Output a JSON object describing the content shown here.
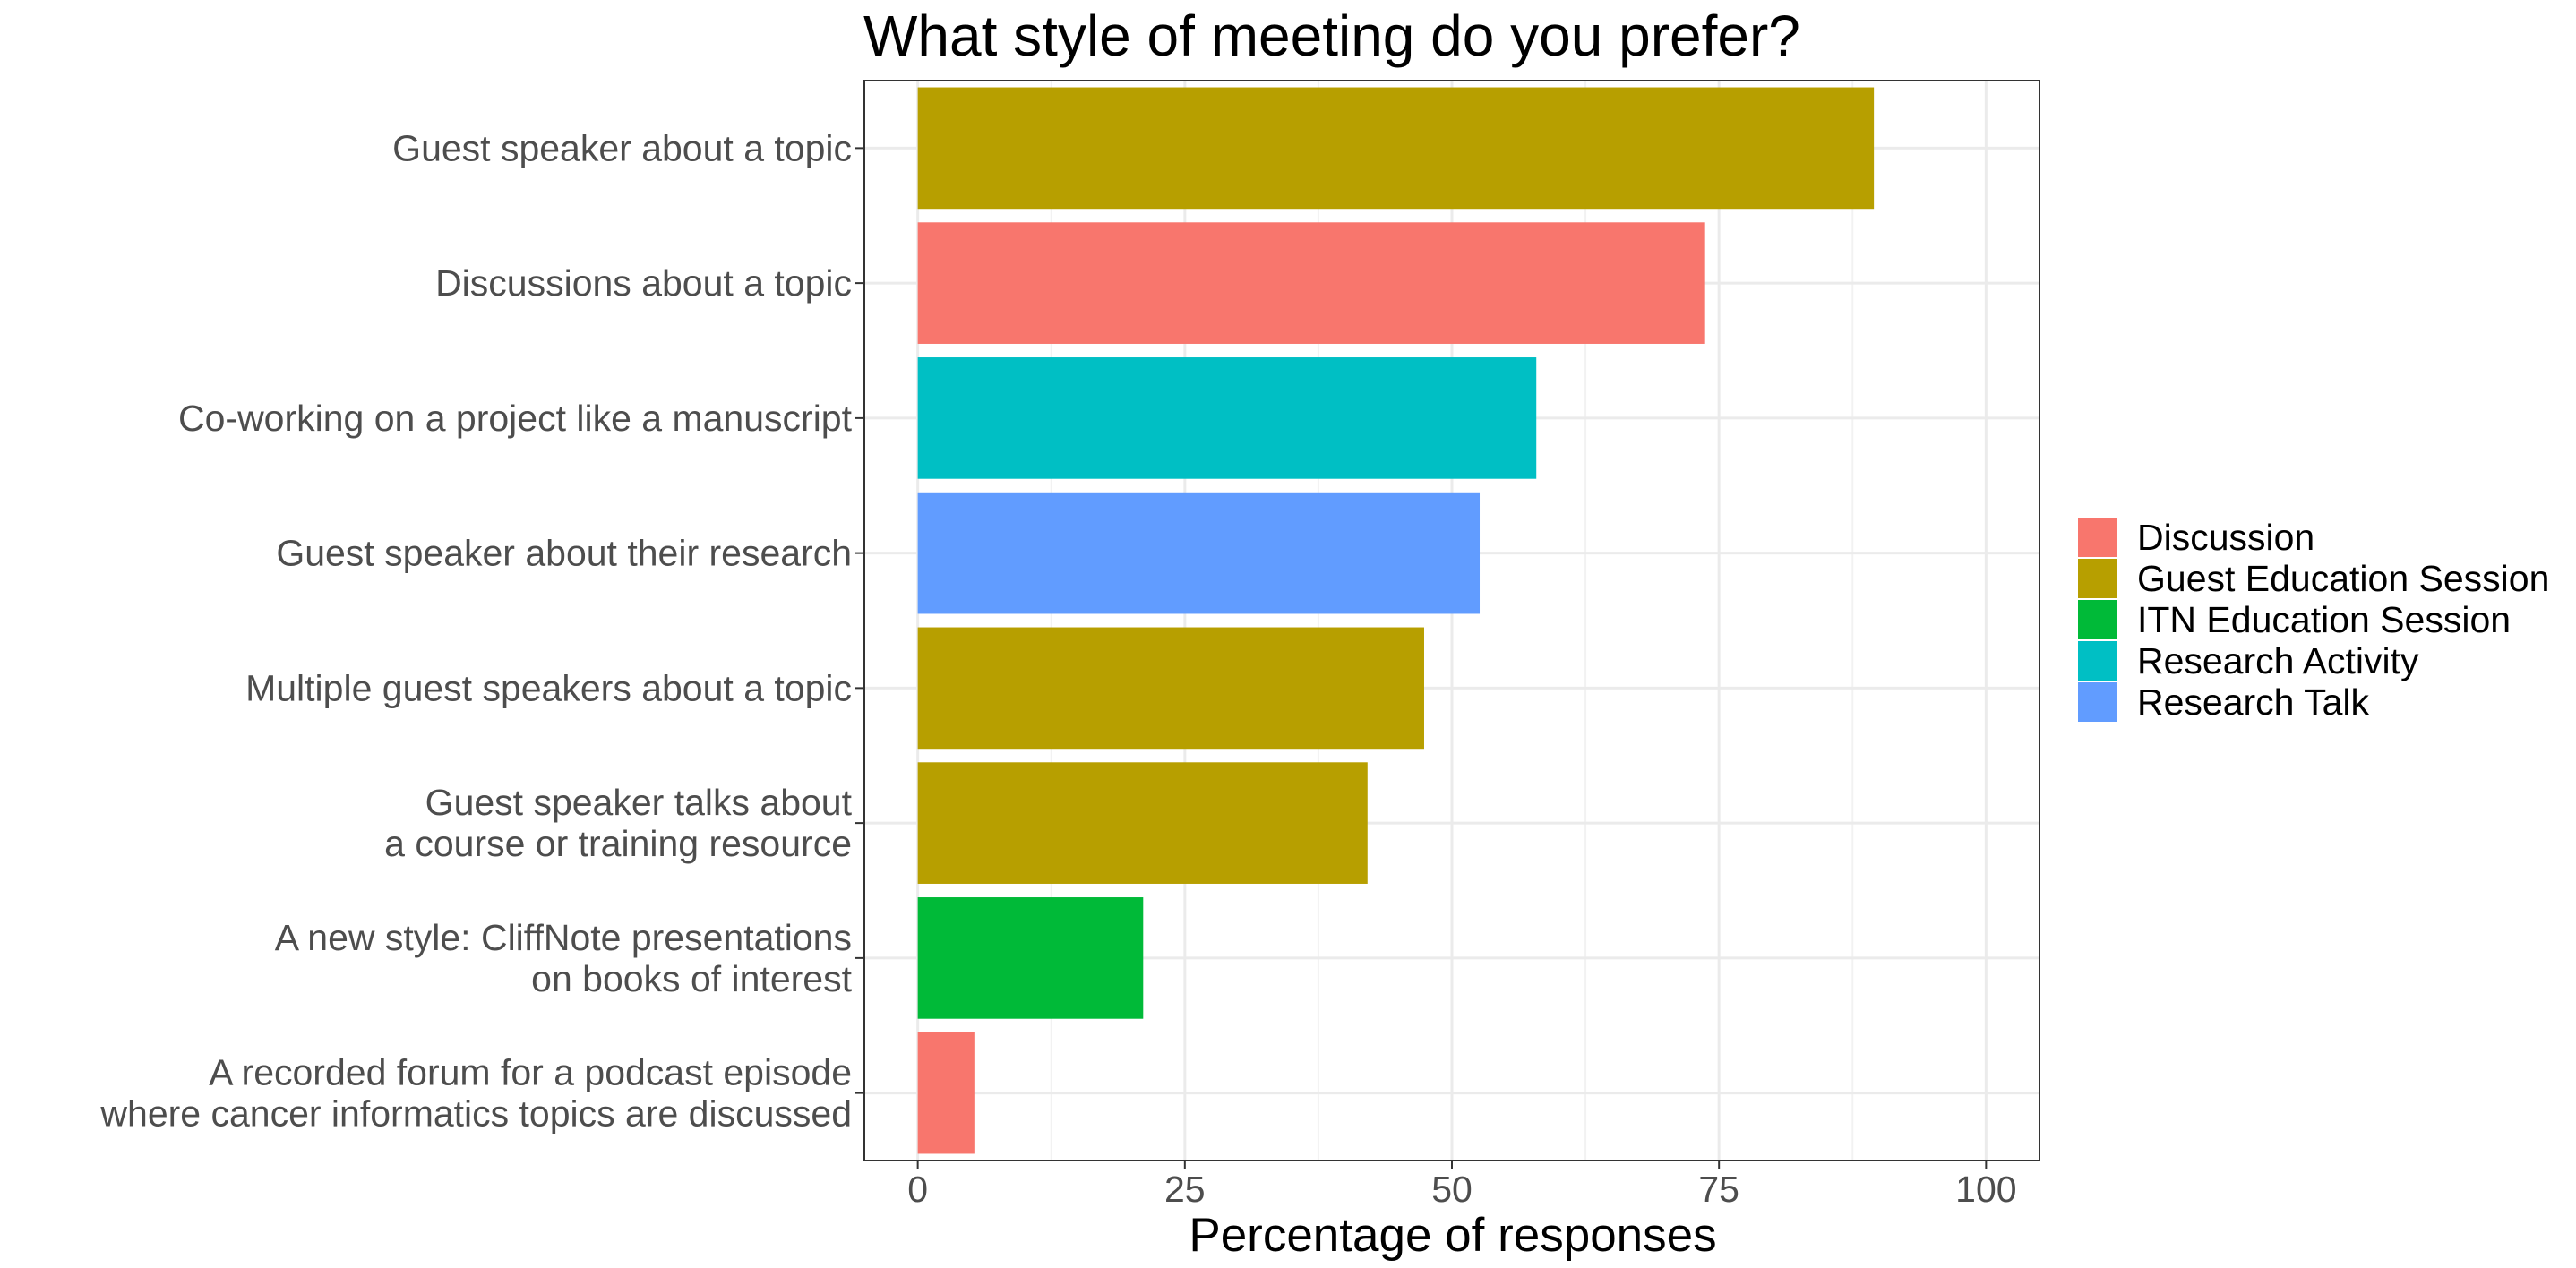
{
  "chart_data": {
    "type": "bar",
    "orientation": "horizontal",
    "title": "What style of meeting do you prefer?",
    "xlabel": "Percentage of responses",
    "ylabel": "",
    "xlim": [
      -5,
      105
    ],
    "xticks": [
      0,
      25,
      50,
      75,
      100
    ],
    "grid": true,
    "legend_position": "right",
    "legend": [
      {
        "name": "Discussion",
        "color": "#F8766D"
      },
      {
        "name": "Guest Education Session",
        "color": "#B79F00"
      },
      {
        "name": "ITN Education Session",
        "color": "#00BA38"
      },
      {
        "name": "Research Activity",
        "color": "#00BFC4"
      },
      {
        "name": "Research Talk",
        "color": "#619CFF"
      }
    ],
    "bars": [
      {
        "label": [
          "Guest speaker about a topic"
        ],
        "value": 89.5,
        "group": "Guest Education Session"
      },
      {
        "label": [
          "Discussions about a topic"
        ],
        "value": 73.7,
        "group": "Discussion"
      },
      {
        "label": [
          "Co-working on a project like a manuscript"
        ],
        "value": 57.9,
        "group": "Research Activity"
      },
      {
        "label": [
          "Guest speaker about their research"
        ],
        "value": 52.6,
        "group": "Research Talk"
      },
      {
        "label": [
          "Multiple guest speakers about a topic"
        ],
        "value": 47.4,
        "group": "Guest Education Session"
      },
      {
        "label": [
          "Guest speaker talks about",
          "a course or training resource"
        ],
        "value": 42.1,
        "group": "Guest Education Session"
      },
      {
        "label": [
          "A new style: CliffNote presentations",
          "on books of interest"
        ],
        "value": 21.1,
        "group": "ITN Education Session"
      },
      {
        "label": [
          "A recorded forum for a podcast episode",
          "where cancer informatics topics are discussed"
        ],
        "value": 5.3,
        "group": "Discussion"
      }
    ]
  }
}
